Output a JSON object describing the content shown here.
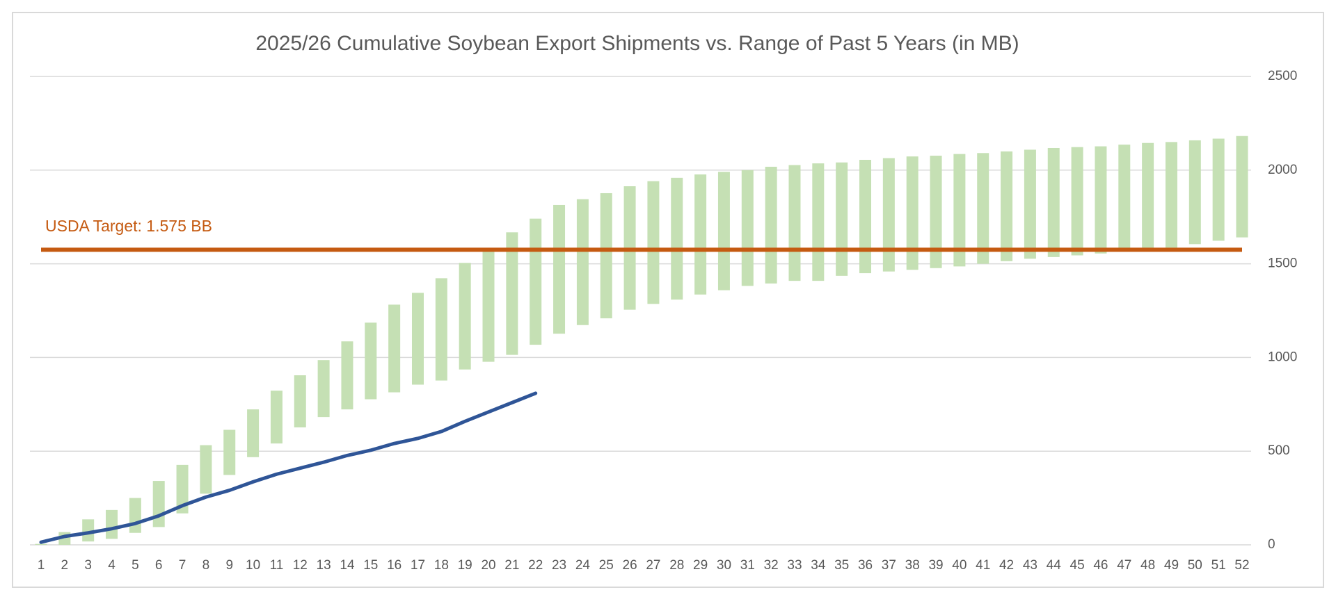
{
  "chart_data": {
    "type": "range_bar_line",
    "title": "2025/26 Cumulative Soybean Export Shipments vs. Range of Past 5 Years (in MB)",
    "x": [
      1,
      2,
      3,
      4,
      5,
      6,
      7,
      8,
      9,
      10,
      11,
      12,
      13,
      14,
      15,
      16,
      17,
      18,
      19,
      20,
      21,
      22,
      23,
      24,
      25,
      26,
      27,
      28,
      29,
      30,
      31,
      32,
      33,
      34,
      35,
      36,
      37,
      38,
      39,
      40,
      41,
      42,
      43,
      44,
      45,
      46,
      47,
      48,
      49,
      50,
      51,
      52
    ],
    "ranges": {
      "color": "#c5e0b4",
      "low": [
        0,
        0,
        18,
        32,
        64,
        95,
        168,
        273,
        373,
        468,
        541,
        627,
        682,
        723,
        777,
        814,
        855,
        877,
        936,
        977,
        1014,
        1068,
        1127,
        1173,
        1209,
        1255,
        1286,
        1309,
        1336,
        1359,
        1382,
        1395,
        1409,
        1409,
        1436,
        1450,
        1459,
        1468,
        1477,
        1486,
        1500,
        1514,
        1527,
        1536,
        1545,
        1555,
        1573,
        1582,
        1586,
        1605,
        1623,
        1641
      ],
      "high": [
        5,
        68,
        136,
        186,
        250,
        341,
        427,
        532,
        614,
        723,
        823,
        905,
        986,
        1086,
        1186,
        1282,
        1345,
        1423,
        1505,
        1582,
        1668,
        1741,
        1814,
        1845,
        1877,
        1914,
        1941,
        1959,
        1977,
        1991,
        2000,
        2018,
        2027,
        2036,
        2041,
        2055,
        2064,
        2073,
        2077,
        2086,
        2091,
        2100,
        2109,
        2118,
        2123,
        2127,
        2136,
        2145,
        2150,
        2159,
        2168,
        2182
      ]
    },
    "line": {
      "color": "#2f5597",
      "values": [
        14,
        45,
        64,
        86,
        114,
        155,
        209,
        255,
        291,
        336,
        377,
        409,
        441,
        477,
        505,
        541,
        568,
        605,
        659,
        709,
        759,
        809,
        null,
        null,
        null,
        null,
        null,
        null,
        null,
        null,
        null,
        null,
        null,
        null,
        null,
        null,
        null,
        null,
        null,
        null,
        null,
        null,
        null,
        null,
        null,
        null,
        null,
        null,
        null,
        null,
        null,
        null
      ]
    },
    "target": {
      "value": 1575,
      "label": "USDA Target: 1.575 BB",
      "color": "#c55a11"
    },
    "ylim": [
      0,
      2500
    ],
    "yticks": [
      0,
      500,
      1000,
      1500,
      2000,
      2500
    ],
    "grid": true
  }
}
